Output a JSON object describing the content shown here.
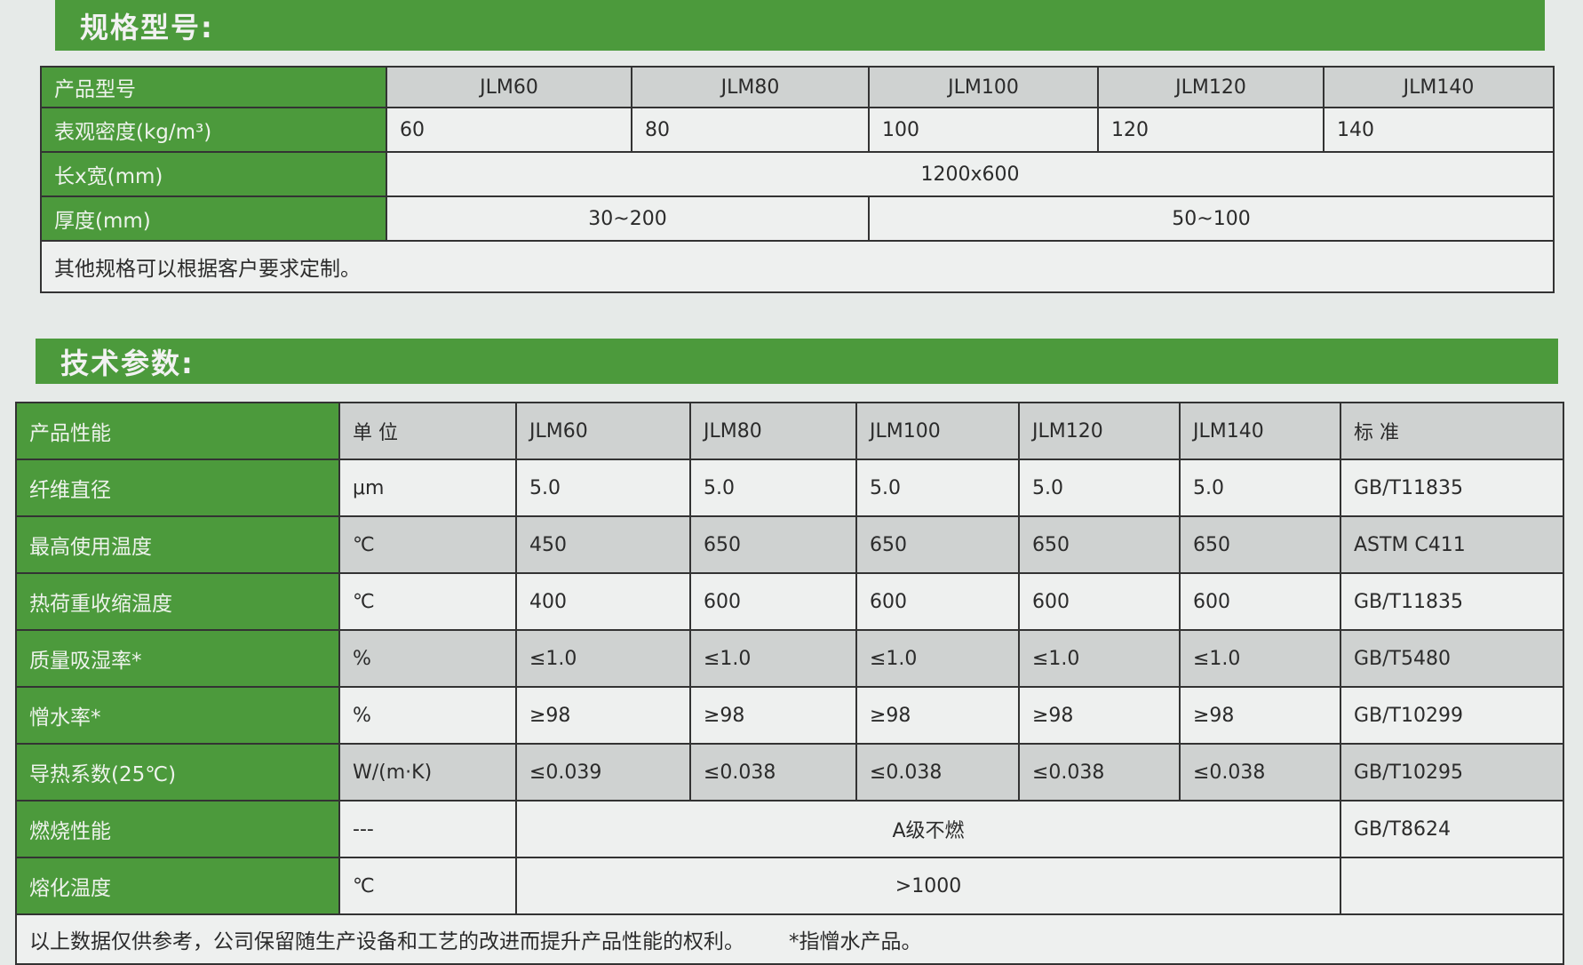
{
  "spec_section": {
    "title": "规格型号:",
    "rows": [
      {
        "label": "产品型号",
        "values": [
          "JLM60",
          "JLM80",
          "JLM100",
          "JLM120",
          "JLM140"
        ]
      },
      {
        "label": "表观密度(kg/m³)",
        "values": [
          "60",
          "80",
          "100",
          "120",
          "140"
        ]
      },
      {
        "label": "长x宽(mm)",
        "merged": "1200x600"
      },
      {
        "label": "厚度(mm)",
        "split": [
          "30~200",
          "50~100"
        ]
      }
    ],
    "note": "其他规格可以根据客户要求定制。"
  },
  "tech_section": {
    "title": "技术参数:",
    "headers": [
      "产品性能",
      "单  位",
      "JLM60",
      "JLM80",
      "JLM100",
      "JLM120",
      "JLM140",
      "标 准"
    ],
    "rows": [
      {
        "label": "纤维直径",
        "unit": "μm",
        "values": [
          "5.0",
          "5.0",
          "5.0",
          "5.0",
          "5.0"
        ],
        "standard": "GB/T11835"
      },
      {
        "label": "最高使用温度",
        "unit": "℃",
        "values": [
          "450",
          "650",
          "650",
          "650",
          "650"
        ],
        "standard": "ASTM C411"
      },
      {
        "label": "热荷重收缩温度",
        "unit": "℃",
        "values": [
          "400",
          "600",
          "600",
          "600",
          "600"
        ],
        "standard": "GB/T11835"
      },
      {
        "label": "质量吸湿率*",
        "unit": "%",
        "values": [
          "≤1.0",
          "≤1.0",
          "≤1.0",
          "≤1.0",
          "≤1.0"
        ],
        "standard": "GB/T5480"
      },
      {
        "label": "憎水率*",
        "unit": "%",
        "values": [
          "≥98",
          "≥98",
          "≥98",
          "≥98",
          "≥98"
        ],
        "standard": "GB/T10299"
      },
      {
        "label": "导热系数(25℃)",
        "unit": "W/(m·K)",
        "values": [
          "≤0.039",
          "≤0.038",
          "≤0.038",
          "≤0.038",
          "≤0.038"
        ],
        "standard": "GB/T10295"
      },
      {
        "label": "燃烧性能",
        "unit": "---",
        "merged": "A级不燃",
        "standard": "GB/T8624"
      },
      {
        "label": "熔化温度",
        "unit": "℃",
        "merged": ">1000",
        "standard": ""
      }
    ],
    "footer": "以上数据仅供参考，公司保留随生产设备和工艺的改进而提升产品性能的权利。",
    "footnote": "*指憎水产品。"
  },
  "colors": {
    "green": "#4c9a3c",
    "gray_cell": "#cfd2d1",
    "background": "#e6eae8"
  }
}
